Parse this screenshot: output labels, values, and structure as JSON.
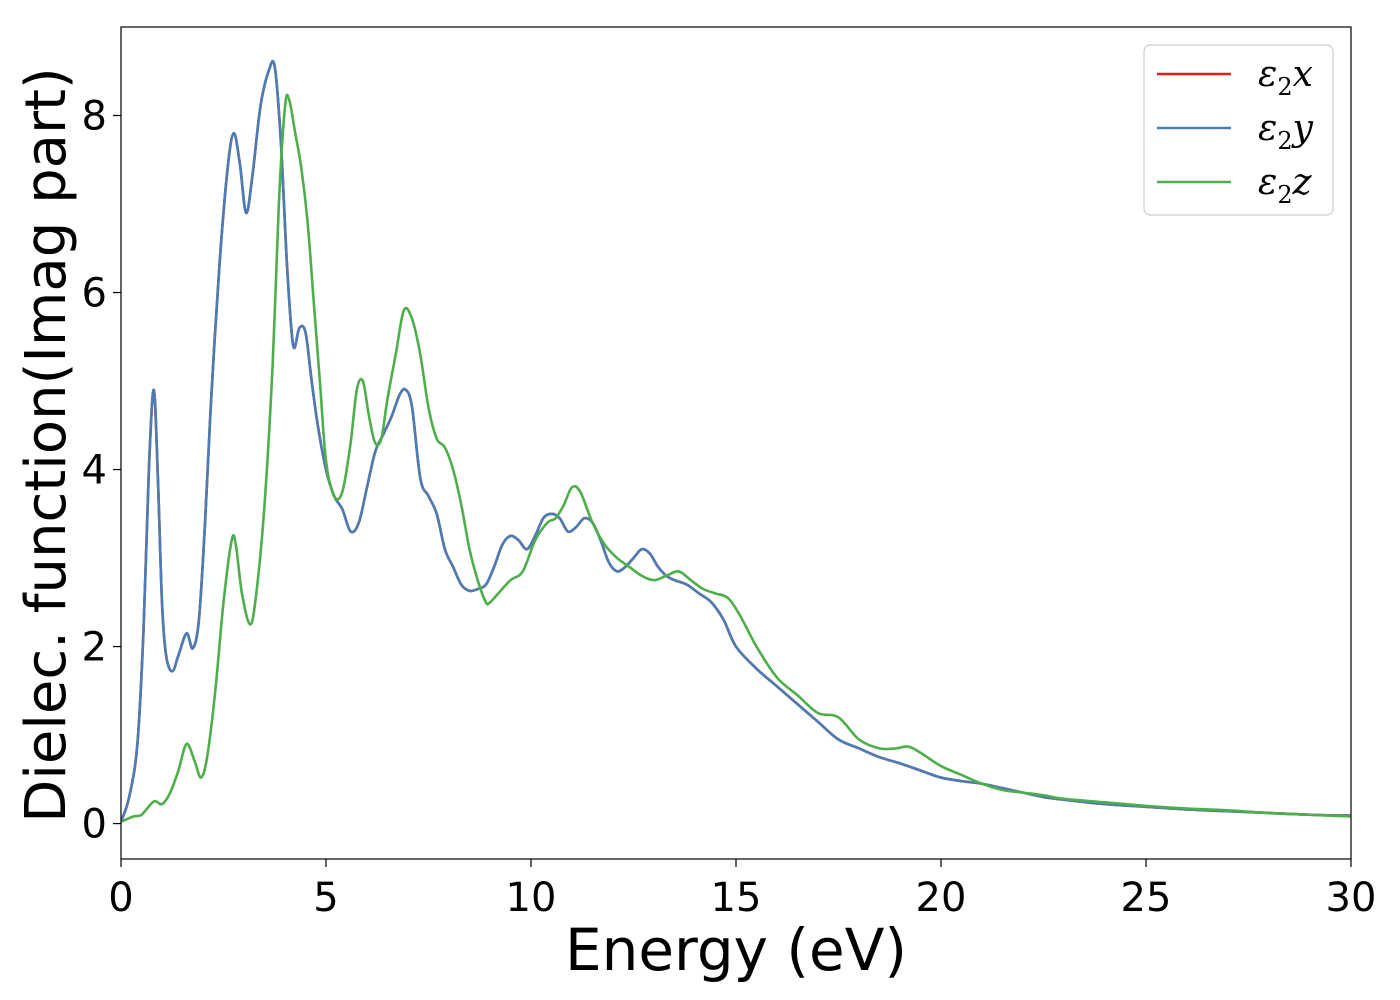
{
  "chart_data": {
    "type": "line",
    "title": "",
    "xlabel": "Energy (eV)",
    "ylabel": "Dielec. function(Imag part)",
    "xlim": [
      0,
      30
    ],
    "ylim": [
      -0.4,
      9.0
    ],
    "xticks": [
      0,
      5,
      10,
      15,
      20,
      25,
      30
    ],
    "yticks": [
      0,
      2,
      4,
      6,
      8
    ],
    "grid": false,
    "legend_position": "top-right",
    "series": [
      {
        "name": "ε₂x",
        "legend_main": "ε",
        "legend_sub": "2",
        "legend_var": "x",
        "color": "#e41a1c",
        "x": [
          0,
          0.2,
          0.4,
          0.55,
          0.68,
          0.8,
          0.9,
          1.0,
          1.1,
          1.25,
          1.4,
          1.6,
          1.75,
          1.9,
          2.05,
          2.2,
          2.4,
          2.6,
          2.75,
          2.9,
          3.05,
          3.2,
          3.4,
          3.6,
          3.75,
          3.9,
          4.05,
          4.2,
          4.35,
          4.5,
          4.65,
          4.8,
          5.0,
          5.2,
          5.4,
          5.6,
          5.8,
          6.0,
          6.2,
          6.4,
          6.6,
          6.8,
          6.95,
          7.1,
          7.3,
          7.5,
          7.7,
          7.9,
          8.1,
          8.3,
          8.5,
          8.7,
          8.9,
          9.1,
          9.3,
          9.5,
          9.7,
          9.9,
          10.1,
          10.3,
          10.5,
          10.7,
          10.9,
          11.1,
          11.3,
          11.5,
          11.7,
          11.9,
          12.1,
          12.3,
          12.5,
          12.7,
          12.9,
          13.1,
          13.3,
          13.5,
          13.8,
          14.1,
          14.4,
          14.7,
          15.0,
          15.5,
          16.0,
          16.5,
          17.0,
          17.5,
          18.0,
          18.5,
          19.0,
          19.5,
          20.0,
          20.5,
          21.0,
          21.5,
          22.0,
          22.5,
          23.0,
          24.0,
          25.0,
          26.0,
          27.0,
          28.0,
          29.0,
          30.0
        ],
        "y": [
          0.02,
          0.3,
          0.9,
          2.2,
          4.0,
          4.9,
          3.9,
          2.5,
          1.9,
          1.72,
          1.9,
          2.15,
          1.98,
          2.3,
          3.4,
          4.8,
          6.3,
          7.4,
          7.8,
          7.45,
          6.9,
          7.3,
          8.1,
          8.5,
          8.55,
          7.7,
          6.3,
          5.4,
          5.6,
          5.55,
          5.0,
          4.5,
          4.0,
          3.7,
          3.55,
          3.3,
          3.4,
          3.8,
          4.2,
          4.4,
          4.6,
          4.85,
          4.9,
          4.7,
          3.9,
          3.7,
          3.5,
          3.1,
          2.9,
          2.7,
          2.63,
          2.65,
          2.7,
          2.9,
          3.15,
          3.25,
          3.2,
          3.1,
          3.25,
          3.45,
          3.5,
          3.45,
          3.3,
          3.35,
          3.45,
          3.4,
          3.2,
          2.95,
          2.85,
          2.9,
          3.0,
          3.1,
          3.05,
          2.9,
          2.8,
          2.75,
          2.7,
          2.6,
          2.5,
          2.3,
          2.0,
          1.75,
          1.55,
          1.35,
          1.15,
          0.95,
          0.85,
          0.75,
          0.68,
          0.6,
          0.52,
          0.48,
          0.45,
          0.4,
          0.35,
          0.3,
          0.27,
          0.22,
          0.19,
          0.16,
          0.14,
          0.12,
          0.1,
          0.09
        ]
      },
      {
        "name": "ε₂y",
        "legend_main": "ε",
        "legend_sub": "2",
        "legend_var": "y",
        "color": "#4a7db5",
        "x": [
          0,
          0.2,
          0.4,
          0.55,
          0.68,
          0.8,
          0.9,
          1.0,
          1.1,
          1.25,
          1.4,
          1.6,
          1.75,
          1.9,
          2.05,
          2.2,
          2.4,
          2.6,
          2.75,
          2.9,
          3.05,
          3.2,
          3.4,
          3.6,
          3.75,
          3.9,
          4.05,
          4.2,
          4.35,
          4.5,
          4.65,
          4.8,
          5.0,
          5.2,
          5.4,
          5.6,
          5.8,
          6.0,
          6.2,
          6.4,
          6.6,
          6.8,
          6.95,
          7.1,
          7.3,
          7.5,
          7.7,
          7.9,
          8.1,
          8.3,
          8.5,
          8.7,
          8.9,
          9.1,
          9.3,
          9.5,
          9.7,
          9.9,
          10.1,
          10.3,
          10.5,
          10.7,
          10.9,
          11.1,
          11.3,
          11.5,
          11.7,
          11.9,
          12.1,
          12.3,
          12.5,
          12.7,
          12.9,
          13.1,
          13.3,
          13.5,
          13.8,
          14.1,
          14.4,
          14.7,
          15.0,
          15.5,
          16.0,
          16.5,
          17.0,
          17.5,
          18.0,
          18.5,
          19.0,
          19.5,
          20.0,
          20.5,
          21.0,
          21.5,
          22.0,
          22.5,
          23.0,
          24.0,
          25.0,
          26.0,
          27.0,
          28.0,
          29.0,
          30.0
        ],
        "y": [
          0.02,
          0.3,
          0.9,
          2.2,
          4.0,
          4.9,
          3.9,
          2.5,
          1.9,
          1.72,
          1.9,
          2.15,
          1.98,
          2.3,
          3.4,
          4.8,
          6.3,
          7.4,
          7.8,
          7.45,
          6.9,
          7.3,
          8.1,
          8.5,
          8.55,
          7.7,
          6.3,
          5.4,
          5.6,
          5.55,
          5.0,
          4.5,
          4.0,
          3.7,
          3.55,
          3.3,
          3.4,
          3.8,
          4.2,
          4.4,
          4.6,
          4.85,
          4.9,
          4.7,
          3.9,
          3.7,
          3.5,
          3.1,
          2.9,
          2.7,
          2.63,
          2.65,
          2.7,
          2.9,
          3.15,
          3.25,
          3.2,
          3.1,
          3.25,
          3.45,
          3.5,
          3.45,
          3.3,
          3.35,
          3.45,
          3.4,
          3.2,
          2.95,
          2.85,
          2.9,
          3.0,
          3.1,
          3.05,
          2.9,
          2.8,
          2.75,
          2.7,
          2.6,
          2.5,
          2.3,
          2.0,
          1.75,
          1.55,
          1.35,
          1.15,
          0.95,
          0.85,
          0.75,
          0.68,
          0.6,
          0.52,
          0.48,
          0.45,
          0.4,
          0.35,
          0.3,
          0.27,
          0.22,
          0.19,
          0.16,
          0.14,
          0.12,
          0.1,
          0.09
        ]
      },
      {
        "name": "ε₂z",
        "legend_main": "ε",
        "legend_sub": "2",
        "legend_var": "z",
        "color": "#4daf4a",
        "x": [
          0,
          0.3,
          0.5,
          0.8,
          1.0,
          1.2,
          1.4,
          1.6,
          1.8,
          1.95,
          2.1,
          2.3,
          2.5,
          2.7,
          2.8,
          2.95,
          3.15,
          3.3,
          3.5,
          3.7,
          3.85,
          4.0,
          4.1,
          4.25,
          4.4,
          4.55,
          4.7,
          4.85,
          5.0,
          5.2,
          5.4,
          5.6,
          5.75,
          5.9,
          6.05,
          6.2,
          6.35,
          6.5,
          6.7,
          6.9,
          7.1,
          7.3,
          7.5,
          7.7,
          7.9,
          8.1,
          8.3,
          8.5,
          8.7,
          8.9,
          9.0,
          9.2,
          9.5,
          9.8,
          10.1,
          10.4,
          10.6,
          10.8,
          11.0,
          11.2,
          11.5,
          11.8,
          12.1,
          12.4,
          12.7,
          13.0,
          13.3,
          13.6,
          13.9,
          14.2,
          14.5,
          14.8,
          15.1,
          15.5,
          16.0,
          16.5,
          17.0,
          17.5,
          18.0,
          18.5,
          18.9,
          19.2,
          19.5,
          20.0,
          20.5,
          21.0,
          21.5,
          22.0,
          22.5,
          23.0,
          24.0,
          25.0,
          26.0,
          27.0,
          28.0,
          29.0,
          30.0
        ],
        "y": [
          0.02,
          0.08,
          0.1,
          0.25,
          0.22,
          0.35,
          0.6,
          0.9,
          0.7,
          0.52,
          0.75,
          1.5,
          2.5,
          3.2,
          3.15,
          2.6,
          2.25,
          2.6,
          3.6,
          5.2,
          7.0,
          8.1,
          8.18,
          7.8,
          7.4,
          6.8,
          5.9,
          5.0,
          4.1,
          3.7,
          3.75,
          4.3,
          4.9,
          5.0,
          4.6,
          4.3,
          4.35,
          4.8,
          5.3,
          5.8,
          5.7,
          5.3,
          4.7,
          4.35,
          4.25,
          4.0,
          3.6,
          3.1,
          2.75,
          2.5,
          2.5,
          2.6,
          2.75,
          2.85,
          3.2,
          3.4,
          3.45,
          3.6,
          3.8,
          3.75,
          3.4,
          3.15,
          3.0,
          2.9,
          2.8,
          2.75,
          2.8,
          2.85,
          2.75,
          2.65,
          2.6,
          2.55,
          2.35,
          2.0,
          1.65,
          1.45,
          1.25,
          1.2,
          0.95,
          0.85,
          0.85,
          0.87,
          0.8,
          0.65,
          0.55,
          0.45,
          0.38,
          0.35,
          0.32,
          0.28,
          0.24,
          0.2,
          0.17,
          0.15,
          0.12,
          0.1,
          0.08
        ]
      }
    ]
  }
}
